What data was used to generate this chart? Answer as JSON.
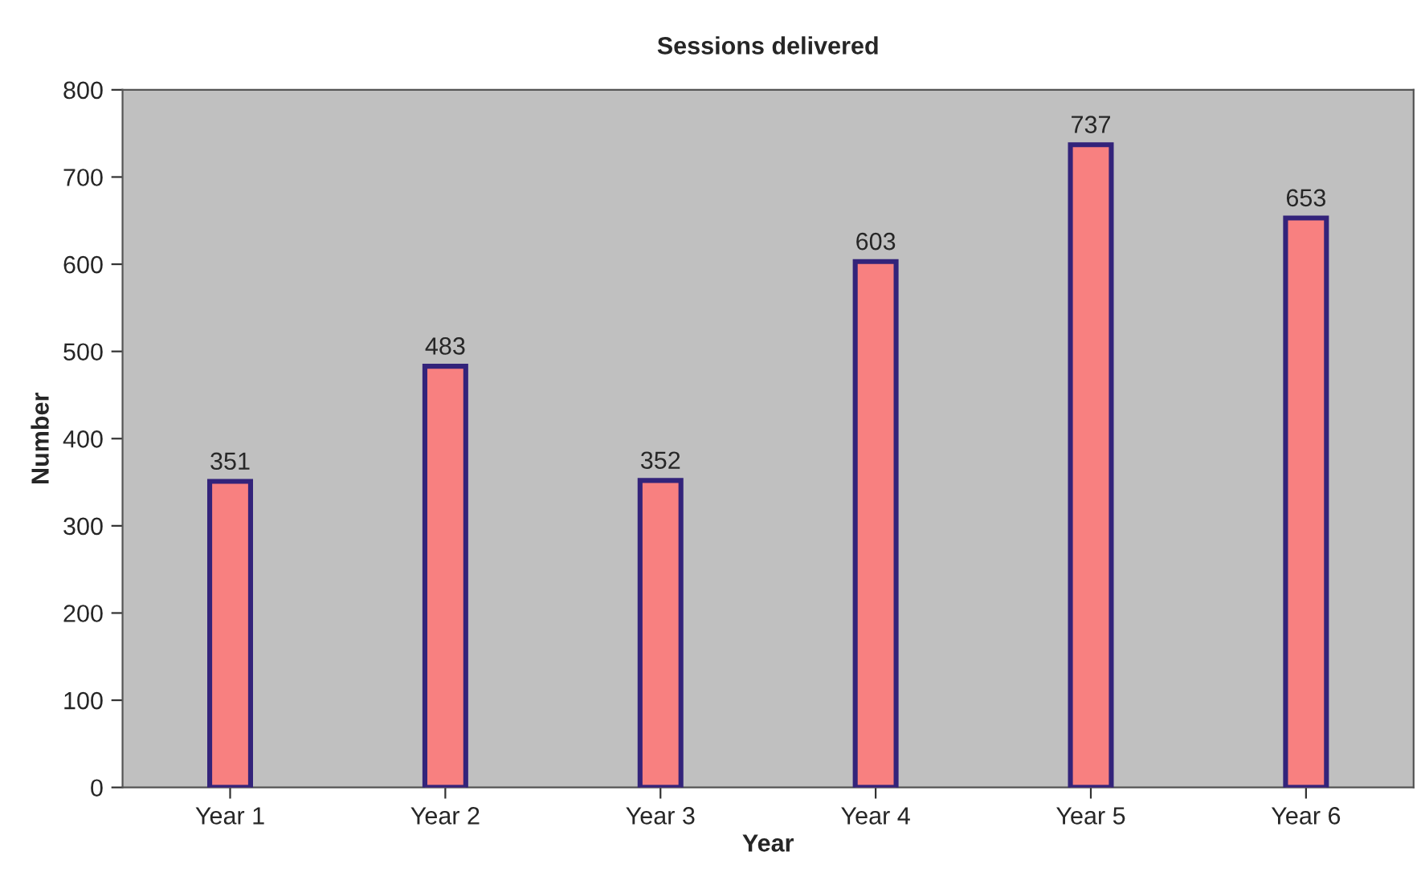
{
  "chart_data": {
    "type": "bar",
    "title": "Sessions delivered",
    "xlabel": "Year",
    "ylabel": "Number",
    "categories": [
      "Year 1",
      "Year 2",
      "Year 3",
      "Year 4",
      "Year 5",
      "Year 6"
    ],
    "values": [
      351,
      483,
      352,
      603,
      737,
      653
    ],
    "color": "#f88080",
    "ylim": [
      0,
      800
    ],
    "yticks": [
      0,
      100,
      200,
      300,
      400,
      500,
      600,
      700,
      800
    ],
    "grid": false,
    "legend": false,
    "data_labels": true
  }
}
